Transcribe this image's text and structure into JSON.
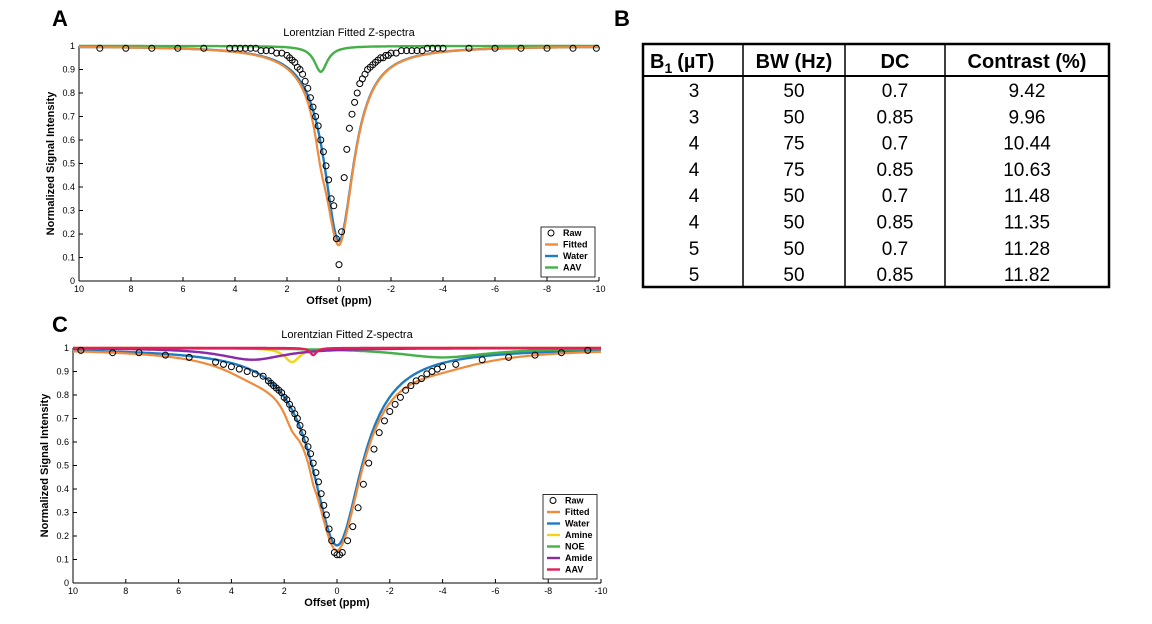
{
  "panels": {
    "a": "A",
    "b": "B",
    "c": "C"
  },
  "colors": {
    "fitted": "#f08a3c",
    "water": "#1f7cc0",
    "aav_a": "#45b048",
    "amine": "#f2d41a",
    "noe": "#45b048",
    "amide": "#8a2aa8",
    "aav_c": "#e0205a",
    "raw": "#000000"
  },
  "table": {
    "headers": [
      "B",
      "1",
      "(µT)",
      "BW (Hz)",
      "DC",
      "Contrast (%)"
    ],
    "rows": [
      [
        "3",
        "50",
        "0.7",
        "9.42"
      ],
      [
        "3",
        "50",
        "0.85",
        "9.96"
      ],
      [
        "4",
        "75",
        "0.7",
        "10.44"
      ],
      [
        "4",
        "75",
        "0.85",
        "10.63"
      ],
      [
        "4",
        "50",
        "0.7",
        "11.48"
      ],
      [
        "4",
        "50",
        "0.85",
        "11.35"
      ],
      [
        "5",
        "50",
        "0.7",
        "11.28"
      ],
      [
        "5",
        "50",
        "0.85",
        "11.82"
      ]
    ]
  },
  "chart_data": [
    {
      "type": "line",
      "title": "Lorentzian Fitted Z-spectra",
      "xlabel": "Offset (ppm)",
      "ylabel": "Normalized Signal Intensity",
      "xlim": [
        10,
        -10
      ],
      "xreversed": true,
      "ylim": [
        0,
        1
      ],
      "xticks": [
        10,
        8,
        6,
        4,
        2,
        0,
        -2,
        -4,
        -6,
        -8,
        -10
      ],
      "xtick_labels": [
        "10",
        "8",
        "6",
        "4",
        "2",
        "0",
        "-2",
        "-4",
        "-6",
        "-8",
        "-10"
      ],
      "yticks": [
        0,
        0.1,
        0.2,
        0.3,
        0.4,
        0.5,
        0.6,
        0.7,
        0.8,
        0.9,
        1
      ],
      "ytick_labels": [
        "0",
        "0.1",
        "0.2",
        "0.3",
        "0.4",
        "0.5",
        "0.6",
        "0.7",
        "0.8",
        "0.9",
        "1"
      ],
      "legend": [
        "Raw",
        "Fitted",
        "Water",
        "AAV"
      ],
      "legend_position": "bottom-right",
      "raw": {
        "x": [
          9.2,
          8.2,
          7.2,
          6.2,
          5.2,
          4.2,
          4.0,
          3.8,
          3.6,
          3.4,
          3.2,
          3.0,
          2.8,
          2.6,
          2.4,
          2.2,
          2.0,
          1.9,
          1.8,
          1.7,
          1.6,
          1.5,
          1.4,
          1.3,
          1.2,
          1.1,
          1.0,
          0.9,
          0.8,
          0.7,
          0.6,
          0.5,
          0.4,
          0.3,
          0.2,
          0.1,
          0.0,
          -0.1,
          -0.2,
          -0.3,
          -0.4,
          -0.5,
          -0.6,
          -0.7,
          -0.8,
          -0.9,
          -1.0,
          -1.1,
          -1.2,
          -1.3,
          -1.4,
          -1.5,
          -1.6,
          -1.7,
          -1.8,
          -1.9,
          -2.0,
          -2.2,
          -2.4,
          -2.6,
          -2.8,
          -3.0,
          -3.2,
          -3.4,
          -3.6,
          -3.8,
          -4.0,
          -5.0,
          -6.0,
          -7.0,
          -8.0,
          -9.0,
          -9.9
        ],
        "y": [
          0.99,
          0.99,
          0.99,
          0.99,
          0.99,
          0.99,
          0.99,
          0.99,
          0.99,
          0.99,
          0.99,
          0.98,
          0.98,
          0.98,
          0.97,
          0.97,
          0.96,
          0.95,
          0.94,
          0.93,
          0.91,
          0.9,
          0.88,
          0.85,
          0.82,
          0.78,
          0.74,
          0.7,
          0.66,
          0.6,
          0.55,
          0.49,
          0.43,
          0.35,
          0.32,
          0.18,
          0.07,
          0.21,
          0.44,
          0.56,
          0.65,
          0.71,
          0.76,
          0.8,
          0.84,
          0.86,
          0.88,
          0.9,
          0.91,
          0.92,
          0.93,
          0.94,
          0.95,
          0.95,
          0.96,
          0.96,
          0.97,
          0.97,
          0.98,
          0.98,
          0.98,
          0.98,
          0.98,
          0.99,
          0.99,
          0.99,
          0.99,
          0.99,
          0.99,
          0.99,
          0.99,
          0.99,
          0.99
        ]
      },
      "fit": {
        "baseline": 1.0,
        "pools": [
          {
            "name": "Water",
            "center": 0.0,
            "amplitude": 0.83,
            "fwhm": 1.4
          },
          {
            "name": "AAV",
            "center": 0.7,
            "amplitude": 0.11,
            "fwhm": 0.6
          }
        ]
      }
    },
    {
      "type": "line",
      "title": "Lorentzian Fitted Z-spectra",
      "xlabel": "Offset (ppm)",
      "ylabel": "Normalized Signal Intensity",
      "xlim": [
        10,
        -10
      ],
      "xreversed": true,
      "ylim": [
        0,
        1
      ],
      "xticks": [
        10,
        8,
        6,
        4,
        2,
        0,
        -2,
        -4,
        -6,
        -8,
        -10
      ],
      "xtick_labels": [
        "10",
        "8",
        "6",
        "4",
        "2",
        "0",
        "-2",
        "-4",
        "-6",
        "-8",
        "-10"
      ],
      "yticks": [
        0,
        0.1,
        0.2,
        0.3,
        0.4,
        0.5,
        0.6,
        0.7,
        0.8,
        0.9,
        1
      ],
      "ytick_labels": [
        "0",
        "0.1",
        "0.2",
        "0.3",
        "0.4",
        "0.5",
        "0.6",
        "0.7",
        "0.8",
        "0.9",
        "1"
      ],
      "legend": [
        "Raw",
        "Fitted",
        "Water",
        "Amine",
        "NOE",
        "Amide",
        "AAV"
      ],
      "legend_position": "bottom-right",
      "raw": {
        "x": [
          9.7,
          8.5,
          7.5,
          6.5,
          5.6,
          4.6,
          4.3,
          4.0,
          3.7,
          3.4,
          3.1,
          2.8,
          2.6,
          2.5,
          2.4,
          2.3,
          2.2,
          2.1,
          2.0,
          1.9,
          1.8,
          1.7,
          1.6,
          1.5,
          1.4,
          1.3,
          1.2,
          1.1,
          1.0,
          0.9,
          0.8,
          0.7,
          0.6,
          0.5,
          0.4,
          0.3,
          0.2,
          0.1,
          0.0,
          -0.1,
          -0.2,
          -0.4,
          -0.6,
          -0.8,
          -1.0,
          -1.2,
          -1.4,
          -1.6,
          -1.8,
          -2.0,
          -2.2,
          -2.4,
          -2.6,
          -2.8,
          -3.0,
          -3.2,
          -3.4,
          -3.6,
          -3.8,
          -4.0,
          -4.5,
          -5.5,
          -6.5,
          -7.5,
          -8.5,
          -9.5
        ],
        "y": [
          0.99,
          0.98,
          0.98,
          0.97,
          0.96,
          0.94,
          0.93,
          0.92,
          0.91,
          0.9,
          0.89,
          0.88,
          0.86,
          0.85,
          0.84,
          0.83,
          0.82,
          0.81,
          0.79,
          0.78,
          0.76,
          0.74,
          0.72,
          0.7,
          0.67,
          0.64,
          0.61,
          0.58,
          0.55,
          0.51,
          0.47,
          0.43,
          0.38,
          0.33,
          0.29,
          0.23,
          0.18,
          0.13,
          0.12,
          0.12,
          0.13,
          0.18,
          0.24,
          0.32,
          0.42,
          0.51,
          0.57,
          0.64,
          0.69,
          0.73,
          0.76,
          0.79,
          0.82,
          0.84,
          0.86,
          0.87,
          0.89,
          0.9,
          0.91,
          0.92,
          0.93,
          0.95,
          0.96,
          0.97,
          0.98,
          0.99
        ]
      },
      "fit": {
        "baseline": 1.0,
        "pools": [
          {
            "name": "Water",
            "center": 0.0,
            "amplitude": 0.84,
            "fwhm": 2.3
          },
          {
            "name": "Amine",
            "center": 1.7,
            "amplitude": 0.06,
            "fwhm": 0.7
          },
          {
            "name": "NOE",
            "center": -4.0,
            "amplitude": 0.04,
            "fwhm": 4.2
          },
          {
            "name": "Amide",
            "center": 3.2,
            "amplitude": 0.05,
            "fwhm": 3.0
          },
          {
            "name": "AAV",
            "center": 0.9,
            "amplitude": 0.03,
            "fwhm": 0.3
          }
        ]
      }
    }
  ]
}
